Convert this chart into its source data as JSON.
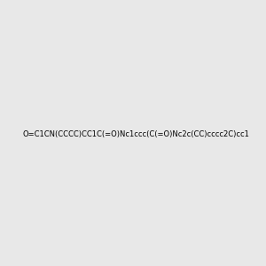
{
  "smiles": "O=C1CN(CCCC)CC1C(=O)Nc1ccc(C(=O)Nc2c(CC)cccc2C)cc1",
  "img_size": [
    300,
    300
  ],
  "background_color": "#e8e8e8",
  "title": ""
}
